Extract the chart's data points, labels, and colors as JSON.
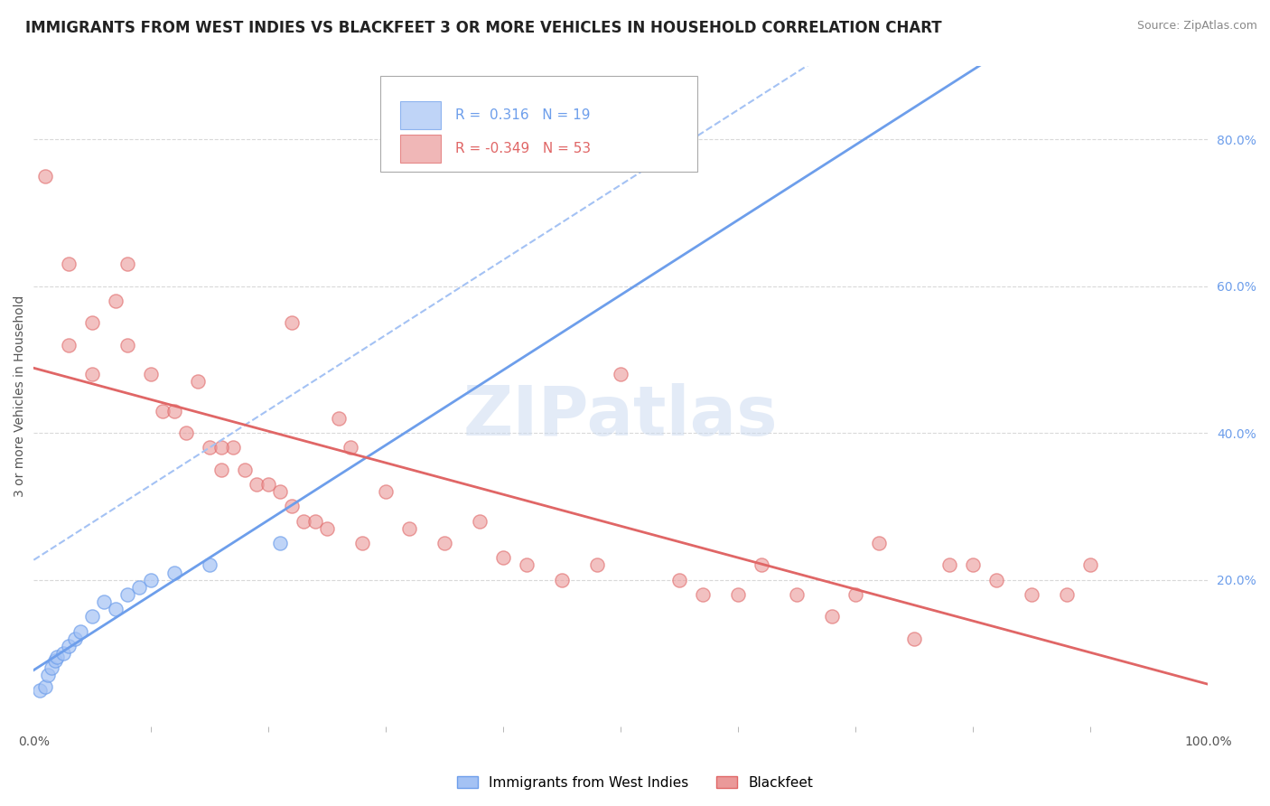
{
  "title": "IMMIGRANTS FROM WEST INDIES VS BLACKFEET 3 OR MORE VEHICLES IN HOUSEHOLD CORRELATION CHART",
  "source_text": "Source: ZipAtlas.com",
  "ylabel": "3 or more Vehicles in Household",
  "xlim": [
    0.0,
    100.0
  ],
  "ylim": [
    0.0,
    90.0
  ],
  "watermark": "ZIPatlas",
  "legend_blue_r": "0.316",
  "legend_blue_n": "19",
  "legend_pink_r": "-0.349",
  "legend_pink_n": "53",
  "legend_label_blue": "Immigrants from West Indies",
  "legend_label_pink": "Blackfeet",
  "blue_color": "#a4c2f4",
  "blue_fill_color": "#a4c2f4",
  "pink_color": "#ea9999",
  "pink_edge_color": "#e06666",
  "blue_trend_color": "#6d9eeb",
  "pink_trend_color": "#e06666",
  "blue_scatter": [
    [
      0.5,
      5.0
    ],
    [
      1.0,
      5.5
    ],
    [
      1.2,
      7.0
    ],
    [
      1.5,
      8.0
    ],
    [
      1.8,
      9.0
    ],
    [
      2.0,
      9.5
    ],
    [
      2.5,
      10.0
    ],
    [
      3.0,
      11.0
    ],
    [
      3.5,
      12.0
    ],
    [
      4.0,
      13.0
    ],
    [
      5.0,
      15.0
    ],
    [
      6.0,
      17.0
    ],
    [
      7.0,
      16.0
    ],
    [
      8.0,
      18.0
    ],
    [
      9.0,
      19.0
    ],
    [
      10.0,
      20.0
    ],
    [
      12.0,
      21.0
    ],
    [
      15.0,
      22.0
    ],
    [
      21.0,
      25.0
    ]
  ],
  "pink_scatter": [
    [
      1.0,
      75.0
    ],
    [
      3.0,
      63.0
    ],
    [
      5.0,
      55.0
    ],
    [
      7.0,
      58.0
    ],
    [
      8.0,
      52.0
    ],
    [
      10.0,
      48.0
    ],
    [
      11.0,
      43.0
    ],
    [
      12.0,
      43.0
    ],
    [
      13.0,
      40.0
    ],
    [
      14.0,
      47.0
    ],
    [
      15.0,
      38.0
    ],
    [
      16.0,
      35.0
    ],
    [
      17.0,
      38.0
    ],
    [
      18.0,
      35.0
    ],
    [
      19.0,
      33.0
    ],
    [
      20.0,
      33.0
    ],
    [
      21.0,
      32.0
    ],
    [
      22.0,
      30.0
    ],
    [
      23.0,
      28.0
    ],
    [
      24.0,
      28.0
    ],
    [
      25.0,
      27.0
    ],
    [
      26.0,
      42.0
    ],
    [
      27.0,
      38.0
    ],
    [
      28.0,
      25.0
    ],
    [
      30.0,
      32.0
    ],
    [
      32.0,
      27.0
    ],
    [
      35.0,
      25.0
    ],
    [
      38.0,
      28.0
    ],
    [
      40.0,
      23.0
    ],
    [
      42.0,
      22.0
    ],
    [
      45.0,
      20.0
    ],
    [
      48.0,
      22.0
    ],
    [
      50.0,
      48.0
    ],
    [
      55.0,
      20.0
    ],
    [
      57.0,
      18.0
    ],
    [
      60.0,
      18.0
    ],
    [
      62.0,
      22.0
    ],
    [
      65.0,
      18.0
    ],
    [
      68.0,
      15.0
    ],
    [
      70.0,
      18.0
    ],
    [
      72.0,
      25.0
    ],
    [
      75.0,
      12.0
    ],
    [
      78.0,
      22.0
    ],
    [
      80.0,
      22.0
    ],
    [
      82.0,
      20.0
    ],
    [
      85.0,
      18.0
    ],
    [
      88.0,
      18.0
    ],
    [
      90.0,
      22.0
    ],
    [
      3.0,
      52.0
    ],
    [
      5.0,
      48.0
    ],
    [
      8.0,
      63.0
    ],
    [
      16.0,
      38.0
    ],
    [
      22.0,
      55.0
    ]
  ],
  "xtick_labels_bottom": [
    "0.0%",
    "100.0%"
  ],
  "xtick_vals_bottom": [
    0,
    100
  ],
  "ytick_labels_right": [
    "20.0%",
    "40.0%",
    "60.0%",
    "80.0%"
  ],
  "ytick_vals_right": [
    20,
    40,
    60,
    80
  ],
  "grid_color": "#d9d9d9",
  "background_color": "#ffffff",
  "title_fontsize": 12,
  "axis_label_fontsize": 10,
  "tick_fontsize": 10,
  "watermark_color": "#c9d9f0",
  "watermark_fontsize": 55
}
